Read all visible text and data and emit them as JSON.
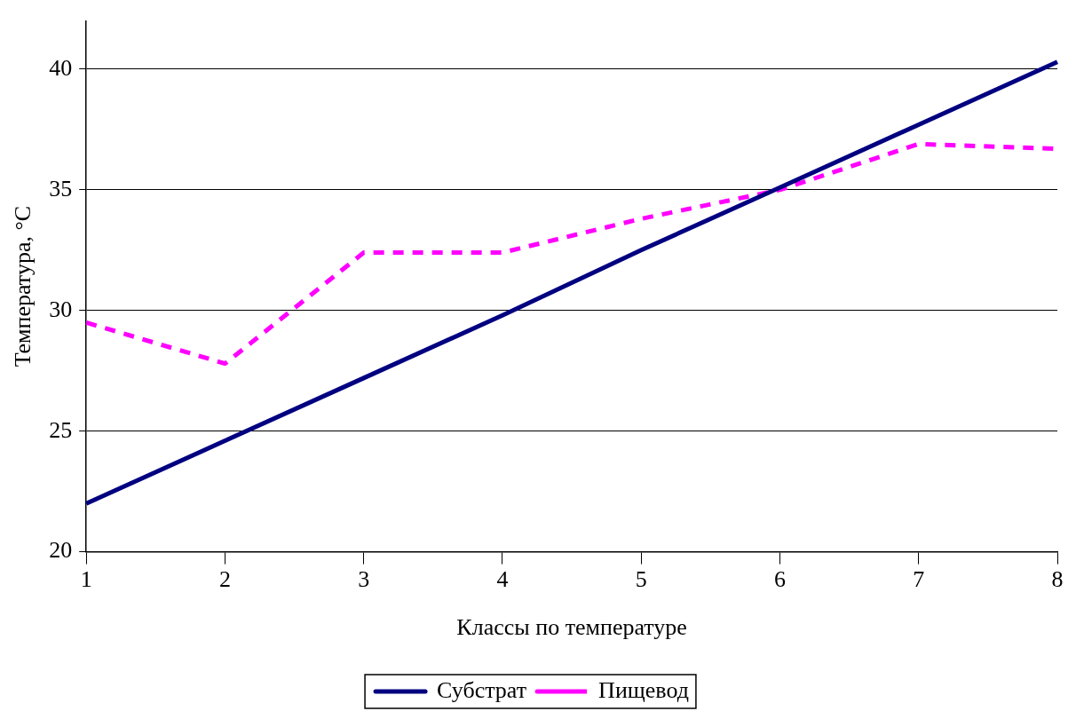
{
  "chart_data": {
    "type": "line",
    "xlabel": "Классы по температуре",
    "ylabel": "Температура, °C",
    "categories": [
      "1",
      "2",
      "3",
      "4",
      "5",
      "6",
      "7",
      "8"
    ],
    "series": [
      {
        "name": "Субстрат",
        "color": "#000080",
        "line_style": "solid",
        "values": [
          22.0,
          24.6,
          27.2,
          29.8,
          32.5,
          35.1,
          37.7,
          40.3
        ]
      },
      {
        "name": "Пищевод",
        "color": "#ff00ff",
        "line_style": "dashed",
        "values": [
          29.5,
          27.8,
          32.4,
          32.4,
          33.8,
          35.0,
          36.9,
          36.7
        ]
      }
    ],
    "ylim": [
      20,
      42
    ],
    "yticks": [
      20,
      25,
      30,
      35,
      40
    ],
    "grid": "y",
    "legend": "bottom",
    "marker": "none"
  }
}
